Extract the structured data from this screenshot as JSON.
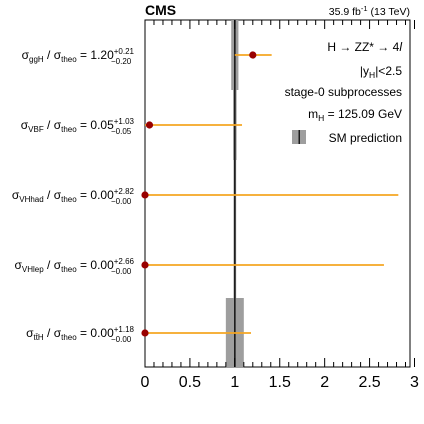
{
  "chart_data": {
    "type": "scatter",
    "title_left": "CMS",
    "title_right": "35.9 fb",
    "title_right_sup": "-1",
    "title_right_suffix": " (13 TeV)",
    "annotations": {
      "process": "H → ZZ* → 4",
      "process_l": "l",
      "rapidity_prefix": "|y",
      "rapidity_sub": "H",
      "rapidity_suffix": "|<2.5",
      "stage": "stage-0 subprocesses",
      "mass_prefix": "m",
      "mass_sub": "H",
      "mass_suffix": " = 125.09 GeV"
    },
    "legend": {
      "label": "SM prediction",
      "position": "top-right"
    },
    "xlim": [
      0,
      2.95
    ],
    "xticks": [
      "0",
      "0.5",
      "1",
      "1.5",
      "2",
      "2.5",
      "3"
    ],
    "xtick_values": [
      0,
      0.5,
      1,
      1.5,
      2,
      2.5,
      3
    ],
    "sm_prediction": {
      "value": 1,
      "uncertainties": [
        {
          "process": "ggH",
          "lo": 0.96,
          "hi": 1.04
        },
        {
          "process": "VBF",
          "lo": 0.98,
          "hi": 1.02
        },
        {
          "process": "VHhad",
          "lo": 0.985,
          "hi": 1.015
        },
        {
          "process": "VHlep",
          "lo": 0.985,
          "hi": 1.015
        },
        {
          "process": "ttH",
          "lo": 0.9,
          "hi": 1.1
        }
      ]
    },
    "series": [
      {
        "points": [
          {
            "process": "ggH",
            "sub": "ggH",
            "value": 1.2,
            "value_text": "1.20",
            "err_up": 0.21,
            "err_down": 0.2,
            "up_text": "+0.21",
            "down_text": "−0.20"
          },
          {
            "process": "VBF",
            "sub": "VBF",
            "value": 0.05,
            "value_text": "0.05",
            "err_up": 1.03,
            "err_down": 0.05,
            "up_text": "+1.03",
            "down_text": "−0.05"
          },
          {
            "process": "VHhad",
            "sub": "VHhad",
            "value": 0.0,
            "value_text": "0.00",
            "err_up": 2.82,
            "err_down": 0.0,
            "up_text": "+2.82",
            "down_text": "−0.00"
          },
          {
            "process": "VHlep",
            "sub": "VHlep",
            "value": 0.0,
            "value_text": "0.00",
            "err_up": 2.66,
            "err_down": 0.0,
            "up_text": "+2.66",
            "down_text": "−0.00"
          },
          {
            "process": "ttH",
            "sub": "tt̄H",
            "value": 0.0,
            "value_text": "0.00",
            "err_up": 1.18,
            "err_down": 0.0,
            "up_text": "+1.18",
            "down_text": "−0.00"
          }
        ]
      }
    ],
    "ylabel_parts": {
      "sigma": "σ",
      "theo_sub": "theo",
      "slash": " / ",
      "equals": " = "
    },
    "colors": {
      "point": "#990000",
      "error_bar": "#f5a623",
      "sm_band": "#9e9e9e",
      "sm_line": "#1a1a1a",
      "axis": "#000000"
    }
  }
}
